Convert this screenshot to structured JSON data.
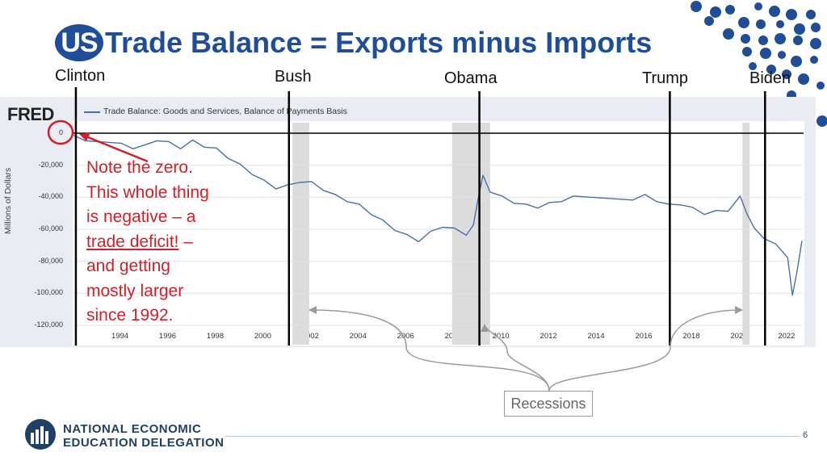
{
  "title": {
    "badge": "US",
    "text": "Trade Balance = Exports minus Imports"
  },
  "presidents": [
    {
      "name": "Clinton"
    },
    {
      "name": "Bush"
    },
    {
      "name": "Obama"
    },
    {
      "name": "Trump"
    },
    {
      "name": "Biden"
    }
  ],
  "note": {
    "line1": "Note the zero.",
    "line2": "This whole thing",
    "line3": "is negative – a",
    "line4": "trade deficit!",
    "line4b": " –",
    "line5": "and getting",
    "line6": "mostly larger",
    "line7": "since 1992."
  },
  "recessions_label": "Recessions",
  "footer": {
    "org_line1": "NATIONAL ECONOMIC",
    "org_line2": "EDUCATION DELEGATION",
    "page": "6"
  },
  "colors": {
    "accent": "#1f4e96",
    "series": "#4a6fa5",
    "annotation": "#d0202a",
    "recession": "#dcdcdc"
  },
  "chart_data": {
    "type": "line",
    "source_logo": "FRED",
    "legend": "Trade Balance: Goods and Services, Balance of Payments Basis",
    "ylabel": "Millions of Dollars",
    "ylim": [
      -120000,
      0
    ],
    "yticks": [
      0,
      -20000,
      -40000,
      -60000,
      -80000,
      -100000,
      -120000
    ],
    "ytick_labels": [
      "0",
      "-20,000",
      "-40,000",
      "-60,000",
      "-80,000",
      "-100,000",
      "-120,000"
    ],
    "xlim": [
      1992,
      2022.6
    ],
    "xticks": [
      1994,
      1996,
      1998,
      2000,
      2002,
      2004,
      2006,
      2008,
      2010,
      2012,
      2014,
      2016,
      2018,
      2020,
      2022
    ],
    "recessions": [
      [
        2001.2,
        2001.9
      ],
      [
        2007.9,
        2009.5
      ],
      [
        2020.1,
        2020.4
      ]
    ],
    "president_year_markers": [
      1992.1,
      2001.05,
      2009.05,
      2017.05,
      2021.05
    ],
    "series": [
      {
        "name": "Trade Balance: Goods and Services, Balance of Payments Basis",
        "x": [
          1992.0,
          1992.5,
          1993.0,
          1993.5,
          1994.0,
          1994.5,
          1995.0,
          1995.5,
          1996.0,
          1996.5,
          1997.0,
          1997.5,
          1998.0,
          1998.5,
          1999.0,
          1999.5,
          2000.0,
          2000.5,
          2001.0,
          2001.5,
          2002.0,
          2002.5,
          2003.0,
          2003.5,
          2004.0,
          2004.5,
          2005.0,
          2005.5,
          2006.0,
          2006.5,
          2007.0,
          2007.5,
          2008.0,
          2008.5,
          2008.8,
          2009.0,
          2009.2,
          2009.5,
          2010.0,
          2010.5,
          2011.0,
          2011.5,
          2012.0,
          2012.5,
          2013.0,
          2013.5,
          2014.0,
          2014.5,
          2015.0,
          2015.5,
          2016.0,
          2016.5,
          2017.0,
          2017.5,
          2018.0,
          2018.5,
          2019.0,
          2019.5,
          2020.0,
          2020.3,
          2020.6,
          2021.0,
          2021.5,
          2022.0,
          2022.2,
          2022.4,
          2022.6
        ],
        "y": [
          -2000,
          -4000,
          -6000,
          -5000,
          -7000,
          -9000,
          -8000,
          -4000,
          -6000,
          -9000,
          -5000,
          -8000,
          -10000,
          -15000,
          -20000,
          -25000,
          -30000,
          -34000,
          -33000,
          -30000,
          -31000,
          -35000,
          -39000,
          -42000,
          -45000,
          -50000,
          -55000,
          -60000,
          -64000,
          -67000,
          -62000,
          -58000,
          -60000,
          -63000,
          -58000,
          -40000,
          -27000,
          -36000,
          -40000,
          -43000,
          -45000,
          -46000,
          -44000,
          -42000,
          -40000,
          -39000,
          -41000,
          -40000,
          -42000,
          -41000,
          -39000,
          -42000,
          -45000,
          -44000,
          -47000,
          -50000,
          -49000,
          -48000,
          -40000,
          -50000,
          -60000,
          -65000,
          -70000,
          -77000,
          -102000,
          -85000,
          -68000
        ]
      }
    ]
  }
}
